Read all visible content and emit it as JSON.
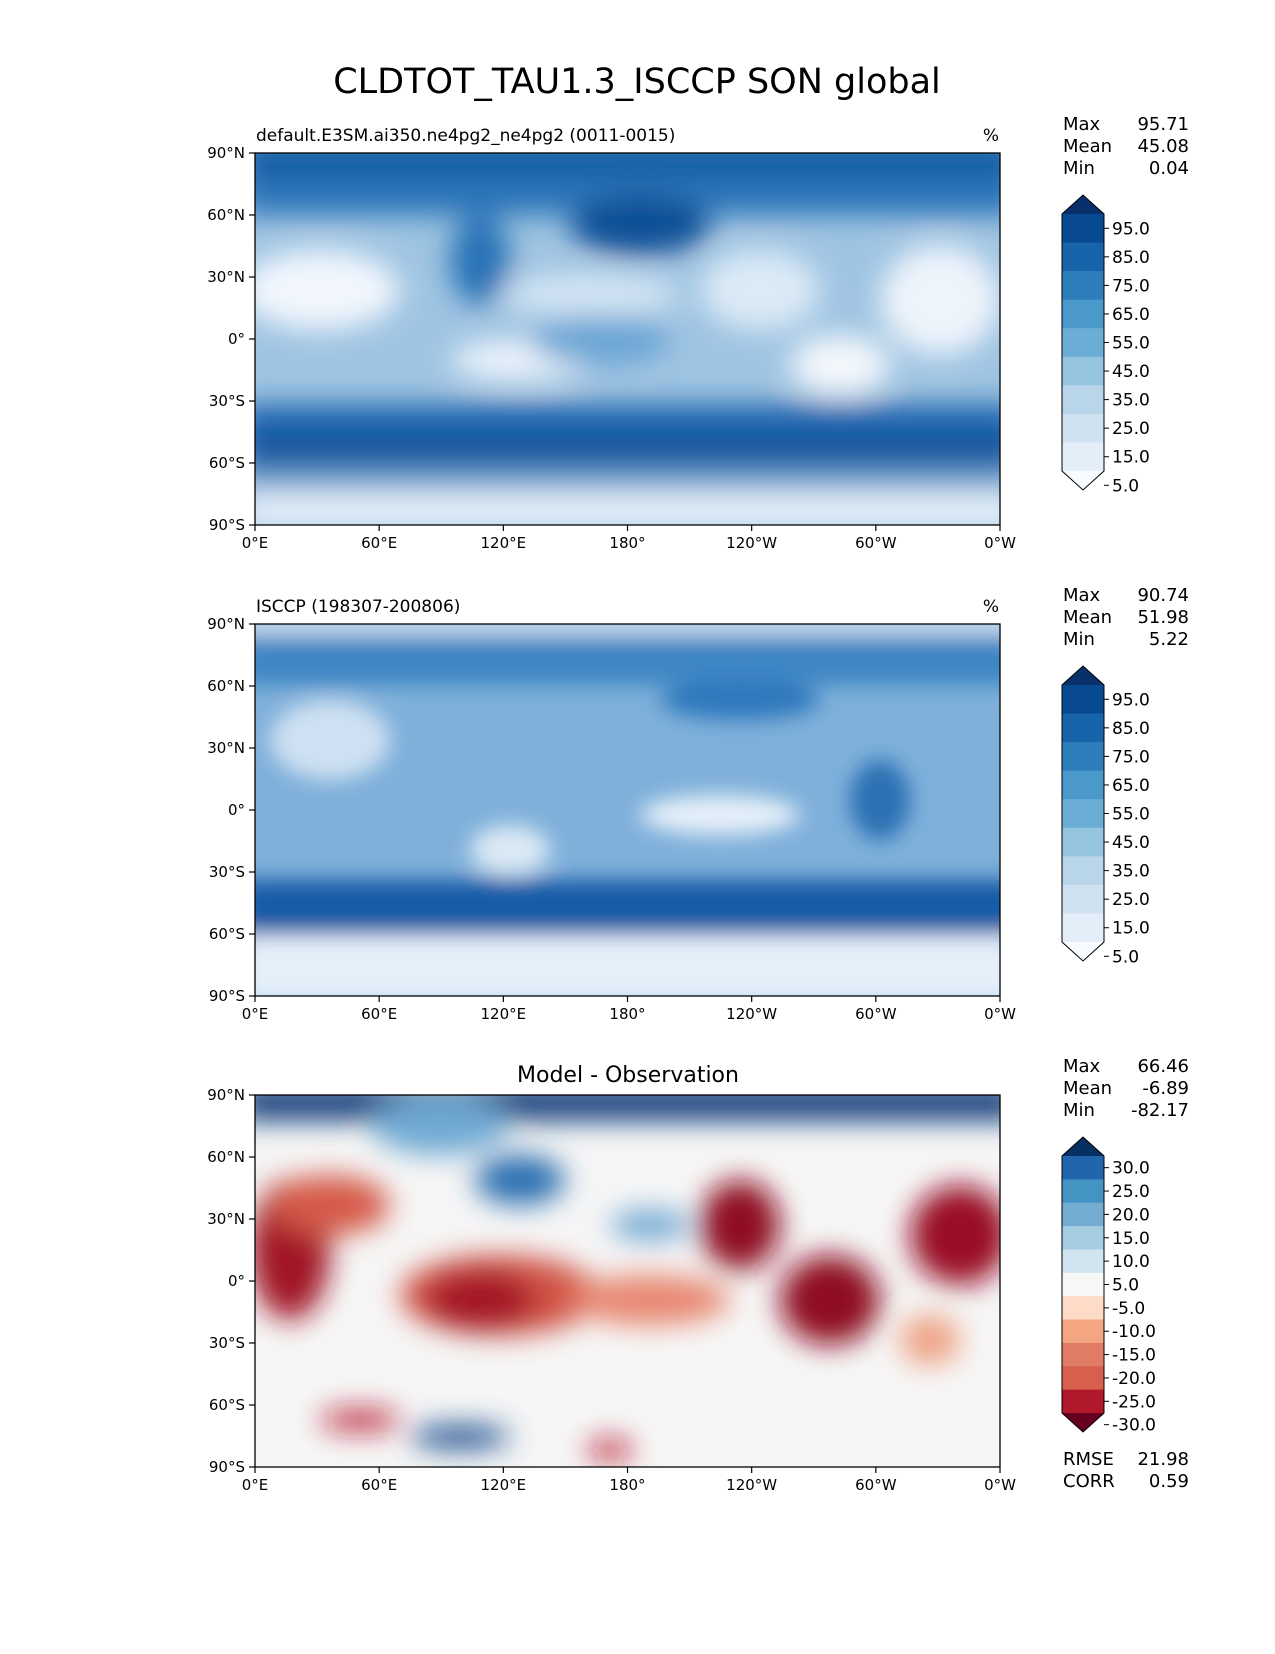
{
  "figure": {
    "title": "CLDTOT_TAU1.3_ISCCP SON global"
  },
  "chart_data": [
    {
      "type": "heatmap",
      "title": "default.E3SM.ai350.ne4pg2_ne4pg2 (0011-0015)",
      "units": "%",
      "xlabel": "",
      "ylabel": "",
      "x_ticks": [
        "0°E",
        "60°E",
        "120°E",
        "180°",
        "120°W",
        "60°W",
        "0°W"
      ],
      "y_ticks": [
        "90°N",
        "60°N",
        "30°N",
        "0°",
        "30°S",
        "60°S",
        "90°S"
      ],
      "xlim": [
        0,
        360
      ],
      "ylim": [
        -90,
        90
      ],
      "stats": {
        "max_label": "Max",
        "max": "95.71",
        "mean_label": "Mean",
        "mean": "45.08",
        "min_label": "Min",
        "min": "0.04"
      },
      "colorbar": {
        "levels": [
          "95.0",
          "85.0",
          "75.0",
          "65.0",
          "55.0",
          "45.0",
          "35.0",
          "25.0",
          "15.0",
          "5.0"
        ],
        "colors": [
          "#08306b",
          "#084a91",
          "#1764ab",
          "#2f7ebc",
          "#4b98ca",
          "#6aaed6",
          "#94c4df",
          "#b8d5ea",
          "#d0e2f2",
          "#e3eef8",
          "#f7fbff"
        ]
      }
    },
    {
      "type": "heatmap",
      "title": "ISCCP (198307-200806)",
      "units": "%",
      "xlabel": "",
      "ylabel": "",
      "x_ticks": [
        "0°E",
        "60°E",
        "120°E",
        "180°",
        "120°W",
        "60°W",
        "0°W"
      ],
      "y_ticks": [
        "90°N",
        "60°N",
        "30°N",
        "0°",
        "30°S",
        "60°S",
        "90°S"
      ],
      "xlim": [
        0,
        360
      ],
      "ylim": [
        -90,
        90
      ],
      "stats": {
        "max_label": "Max",
        "max": "90.74",
        "mean_label": "Mean",
        "mean": "51.98",
        "min_label": "Min",
        "min": "5.22"
      },
      "colorbar": {
        "levels": [
          "95.0",
          "85.0",
          "75.0",
          "65.0",
          "55.0",
          "45.0",
          "35.0",
          "25.0",
          "15.0",
          "5.0"
        ],
        "colors": [
          "#08306b",
          "#084a91",
          "#1764ab",
          "#2f7ebc",
          "#4b98ca",
          "#6aaed6",
          "#94c4df",
          "#b8d5ea",
          "#d0e2f2",
          "#e3eef8",
          "#f7fbff"
        ]
      }
    },
    {
      "type": "heatmap",
      "title": "Model - Observation",
      "units": "",
      "xlabel": "",
      "ylabel": "",
      "x_ticks": [
        "0°E",
        "60°E",
        "120°E",
        "180°",
        "120°W",
        "60°W",
        "0°W"
      ],
      "y_ticks": [
        "90°N",
        "60°N",
        "30°N",
        "0°",
        "30°S",
        "60°S",
        "90°S"
      ],
      "xlim": [
        0,
        360
      ],
      "ylim": [
        -90,
        90
      ],
      "stats": {
        "max_label": "Max",
        "max": "66.46",
        "mean_label": "Mean",
        "mean": "-6.89",
        "min_label": "Min",
        "min": "-82.17"
      },
      "colorbar": {
        "levels": [
          "30.0",
          "25.0",
          "20.0",
          "15.0",
          "10.0",
          "5.0",
          "-5.0",
          "-10.0",
          "-15.0",
          "-20.0",
          "-25.0",
          "-30.0"
        ],
        "colors": [
          "#053061",
          "#2166ac",
          "#4393c3",
          "#74add1",
          "#a6cee3",
          "#d1e5f0",
          "#f7f7f7",
          "#fddbc7",
          "#f4a582",
          "#e07b66",
          "#d6604d",
          "#b2182b",
          "#67001f"
        ]
      },
      "metrics": {
        "rmse_label": "RMSE",
        "rmse": "21.98",
        "corr_label": "CORR",
        "corr": "0.59"
      }
    }
  ]
}
